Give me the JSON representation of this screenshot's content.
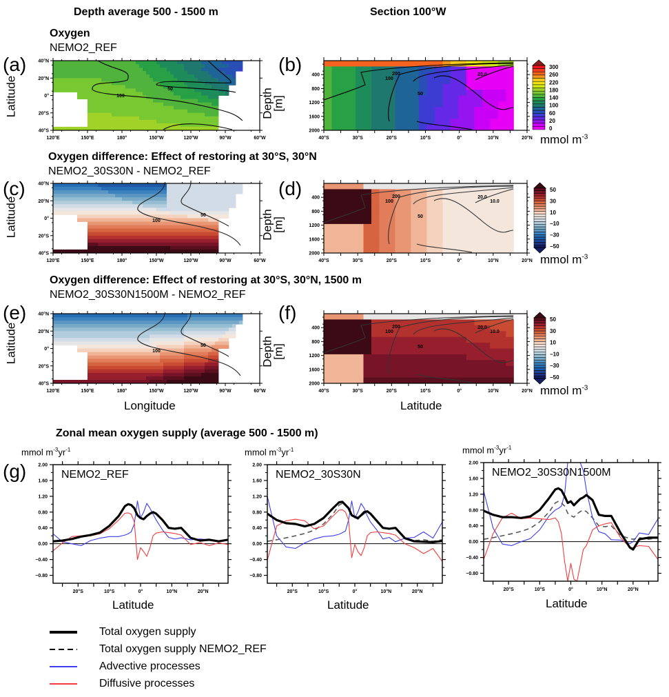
{
  "headers": {
    "left_column": "Depth average 500 - 1500 m",
    "right_column": "Section 100°W"
  },
  "rows": [
    {
      "title": "Oxygen",
      "subtitle": "NEMO2_REF"
    },
    {
      "title": "Oxygen difference: Effect of restoring at 30°S, 30°N",
      "subtitle": "NEMO2_30S30N - NEMO2_REF"
    },
    {
      "title": "Oxygen difference: Effect of restoring at 30°S, 30°N, 1500 m",
      "subtitle": "NEMO2_30S30N1500M - NEMO2_REF"
    }
  ],
  "panel_labels": [
    "(a)",
    "(b)",
    "(c)",
    "(d)",
    "(e)",
    "(f)",
    "(g)"
  ],
  "axis_labels": {
    "map_y": "Latitude",
    "map_x": "Longitude",
    "section_y": "Depth [m]",
    "section_y_line1": "Depth",
    "section_y_line2": "[m]",
    "section_x": "Latitude",
    "unit": "mmol m",
    "unit_exp": "-3",
    "supply_unit": "mmol m",
    "supply_unit_exp1": "-3",
    "supply_unit_mid": "yr",
    "supply_unit_exp2": "-1",
    "supply_x": "Latitude"
  },
  "map_ticks": {
    "lat": [
      "40°N",
      "20°N",
      "0°",
      "20°S",
      "40°S"
    ],
    "lon": [
      "120°E",
      "150°E",
      "180°",
      "150°W",
      "120°W",
      "90°W",
      "60°W"
    ]
  },
  "section_ticks": {
    "depth": [
      "400",
      "800",
      "1200",
      "1600",
      "2000"
    ],
    "lat": [
      "40°S",
      "30°S",
      "20°S",
      "10°S",
      "0°",
      "10°N",
      "20°N"
    ]
  },
  "colorbars": {
    "oxygen": {
      "labels": [
        "300",
        "260",
        "220",
        "180",
        "140",
        "100",
        "60",
        "20",
        "0"
      ],
      "colors": [
        "#8b1a1a",
        "#e8141a",
        "#f03c1e",
        "#f5641e",
        "#f5961e",
        "#f5c81e",
        "#f0e614",
        "#d2e614",
        "#a0d228",
        "#78c832",
        "#50b43c",
        "#28a046",
        "#1e8c5a",
        "#1e786e",
        "#1e6496",
        "#2850b4",
        "#3c3cd2",
        "#6428e6",
        "#9614f0",
        "#c800f5",
        "#e600f5"
      ]
    },
    "difference": {
      "labels": [
        "50",
        "30",
        "10",
        "−10",
        "−30",
        "−50"
      ],
      "colors": [
        "#3c0a14",
        "#5a0f1e",
        "#781428",
        "#961e2d",
        "#b4322d",
        "#c84b32",
        "#d76441",
        "#e17d5a",
        "#e89673",
        "#f0b496",
        "#f5d2be",
        "#f5e6dc",
        "#e6e6e6",
        "#d2dce6",
        "#b4cddc",
        "#96bed2",
        "#78aac8",
        "#5a96c3",
        "#3c82be",
        "#286eb4",
        "#1e5aa5",
        "#1e4696",
        "#1e3282",
        "#141e64"
      ]
    }
  },
  "contour_labels": {
    "a": [
      "100",
      "50"
    ],
    "b": [
      "200",
      "100",
      "50",
      "20.0"
    ],
    "c": [
      "100",
      "50"
    ],
    "d": [
      "200",
      "100",
      "50",
      "20.0",
      "10.0"
    ],
    "e": [
      "100",
      "50"
    ],
    "f": [
      "200",
      "100",
      "50",
      "20.0",
      "10.0"
    ]
  },
  "supply_section": {
    "title": "Zonal mean oxygen supply (average 500 - 1500 m)",
    "legend": [
      {
        "label": "Total oxygen supply",
        "style": "thick-solid",
        "color": "#000000"
      },
      {
        "label": "Total oxygen supply NEMO2_REF",
        "style": "dashed",
        "color": "#000000"
      },
      {
        "label": "Advective processes",
        "style": "solid",
        "color": "#3c3cf0"
      },
      {
        "label": "Diffusive processes",
        "style": "solid",
        "color": "#f03c3c"
      }
    ]
  },
  "chart_data": [
    {
      "type": "line",
      "title": "NEMO2_REF",
      "xlabel": "Latitude",
      "ylabel": "mmol m-3 yr-1",
      "xlim": [
        -28,
        28
      ],
      "ylim": [
        -1.0,
        2.0
      ],
      "yticks": [
        "2.00",
        "1.60",
        "1.20",
        "0.80",
        "0.40",
        "0.00",
        "−0.40",
        "−0.80"
      ],
      "xticks": [
        "20°S",
        "10°S",
        "0°",
        "10°N",
        "20°N"
      ],
      "x": [
        -28,
        -25,
        -22,
        -19,
        -16,
        -13,
        -10,
        -7,
        -5,
        -4,
        -3,
        -2,
        -1,
        0,
        1,
        2,
        3,
        4,
        5,
        7,
        9,
        11,
        13,
        16,
        19,
        22,
        25,
        28
      ],
      "series": [
        {
          "name": "Total oxygen supply",
          "values": [
            0.06,
            0.08,
            0.12,
            0.18,
            0.22,
            0.28,
            0.45,
            0.7,
            0.95,
            1.0,
            0.98,
            0.9,
            0.72,
            0.65,
            0.62,
            0.7,
            0.76,
            0.8,
            0.76,
            0.6,
            0.4,
            0.38,
            0.4,
            0.15,
            0.08,
            0.1,
            0.06,
            0.1
          ]
        },
        {
          "name": "Advective processes",
          "values": [
            0.25,
            0.05,
            0.0,
            -0.05,
            0.08,
            0.14,
            0.18,
            0.18,
            0.22,
            0.25,
            0.3,
            0.5,
            1.08,
            0.65,
            0.8,
            1.02,
            0.9,
            0.75,
            0.6,
            0.35,
            0.16,
            0.12,
            0.15,
            0.1,
            0.12,
            0.1,
            0.05,
            0.1
          ]
        },
        {
          "name": "Diffusive processes",
          "values": [
            -0.18,
            0.02,
            0.18,
            0.2,
            0.2,
            0.25,
            0.38,
            0.6,
            0.77,
            0.78,
            0.75,
            0.55,
            -0.4,
            -0.1,
            -0.2,
            -0.32,
            -0.1,
            0.2,
            0.27,
            0.3,
            0.28,
            0.26,
            0.22,
            -0.02,
            0.03,
            -0.05,
            0.02,
            -0.02
          ]
        }
      ]
    },
    {
      "type": "line",
      "title": "NEMO2_30S30N",
      "xlabel": "Latitude",
      "ylabel": "mmol m-3 yr-1",
      "xlim": [
        -28,
        28
      ],
      "ylim": [
        -1.0,
        2.0
      ],
      "yticks": [
        "2.00",
        "1.60",
        "1.20",
        "0.80",
        "0.40",
        "0.00",
        "−0.40",
        "−0.80"
      ],
      "xticks": [
        "20°S",
        "10°S",
        "0°",
        "10°N",
        "20°N"
      ],
      "x": [
        -28,
        -25,
        -22,
        -19,
        -16,
        -13,
        -10,
        -7,
        -5,
        -4,
        -3,
        -2,
        -1,
        0,
        1,
        2,
        3,
        4,
        5,
        7,
        9,
        11,
        13,
        16,
        19,
        22,
        25,
        28
      ],
      "series": [
        {
          "name": "Total oxygen supply",
          "values": [
            0.76,
            0.6,
            0.52,
            0.5,
            0.44,
            0.5,
            0.65,
            0.9,
            1.05,
            1.06,
            0.98,
            0.9,
            0.72,
            0.68,
            0.65,
            0.72,
            0.8,
            0.82,
            0.76,
            0.58,
            0.4,
            0.38,
            0.4,
            0.14,
            0.06,
            0.05,
            0.04,
            0.07
          ]
        },
        {
          "name": "Total oxygen supply NEMO2_REF",
          "values": [
            0.06,
            0.1,
            0.15,
            0.2,
            0.26,
            0.34,
            0.5,
            0.75,
            0.98,
            1.02,
            0.98,
            0.9,
            0.72,
            0.66,
            0.62,
            0.7,
            0.76,
            0.8,
            0.76,
            0.6,
            0.4,
            0.38,
            0.4,
            0.15,
            0.08,
            0.1,
            0.06,
            0.1
          ]
        },
        {
          "name": "Advective processes",
          "values": [
            1.2,
            0.2,
            -0.08,
            -0.12,
            0.02,
            0.12,
            0.18,
            0.2,
            0.24,
            0.28,
            0.32,
            0.6,
            1.08,
            0.65,
            0.8,
            1.02,
            0.9,
            0.7,
            0.55,
            0.35,
            0.12,
            0.16,
            0.05,
            0.14,
            0.16,
            0.3,
            0.14,
            0.55
          ]
        },
        {
          "name": "Diffusive processes",
          "values": [
            -0.42,
            0.45,
            0.58,
            0.62,
            0.58,
            0.38,
            0.45,
            0.7,
            0.85,
            0.86,
            0.8,
            0.6,
            -0.35,
            -0.02,
            -0.2,
            -0.3,
            -0.1,
            0.2,
            0.28,
            0.3,
            0.28,
            0.26,
            0.22,
            0.0,
            -0.1,
            -0.25,
            -0.12,
            -0.45
          ]
        }
      ]
    },
    {
      "type": "line",
      "title": "NEMO2_30S30N1500M",
      "xlabel": "Latitude",
      "ylabel": "mmol m-3 yr-1",
      "xlim": [
        -28,
        28
      ],
      "ylim": [
        -1.0,
        2.0
      ],
      "yticks": [
        "2.00",
        "1.60",
        "1.20",
        "0.80",
        "0.40",
        "0.00",
        "−0.40",
        "−0.80"
      ],
      "xticks": [
        "20°S",
        "10°S",
        "0°",
        "10°N",
        "20°N"
      ],
      "x": [
        -28,
        -25,
        -22,
        -19,
        -16,
        -13,
        -10,
        -7,
        -5,
        -4,
        -3,
        -2,
        -1,
        0,
        1,
        2,
        3,
        4,
        5,
        7,
        9,
        11,
        13,
        16,
        19,
        20,
        22,
        25,
        28
      ],
      "series": [
        {
          "name": "Total oxygen supply",
          "values": [
            0.78,
            0.68,
            0.62,
            0.62,
            0.6,
            0.64,
            0.8,
            1.1,
            1.32,
            1.35,
            1.3,
            1.15,
            0.98,
            1.02,
            0.92,
            1.0,
            1.08,
            1.12,
            1.18,
            1.05,
            0.68,
            0.65,
            0.65,
            0.22,
            -0.15,
            -0.2,
            0.06,
            0.1,
            0.1
          ]
        },
        {
          "name": "Total oxygen supply NEMO2_REF",
          "values": [
            0.06,
            0.1,
            0.15,
            0.2,
            0.26,
            0.34,
            0.5,
            0.75,
            0.98,
            1.02,
            0.98,
            0.9,
            0.72,
            0.66,
            0.62,
            0.7,
            0.76,
            0.8,
            0.76,
            0.6,
            0.4,
            0.38,
            0.4,
            0.15,
            0.08,
            0.06,
            0.1,
            0.06,
            0.1
          ]
        },
        {
          "name": "Advective processes",
          "values": [
            1.28,
            0.35,
            -0.06,
            -0.1,
            0.0,
            0.08,
            0.3,
            0.65,
            0.8,
            0.84,
            0.9,
            1.2,
            2.0,
            2.0,
            2.0,
            2.0,
            2.0,
            1.8,
            1.3,
            0.6,
            0.25,
            0.2,
            0.05,
            0.04,
            -0.05,
            0.0,
            0.22,
            0.18,
            0.58
          ]
        },
        {
          "name": "Diffusive processes",
          "values": [
            -0.45,
            0.2,
            0.6,
            0.72,
            0.58,
            0.6,
            0.58,
            0.56,
            0.6,
            0.5,
            0.2,
            -0.5,
            -1.0,
            -0.55,
            -0.95,
            -1.0,
            -0.6,
            -0.2,
            -0.1,
            0.3,
            0.4,
            0.45,
            0.48,
            0.1,
            -0.15,
            -0.15,
            -0.1,
            -0.12,
            -0.45
          ]
        }
      ]
    }
  ]
}
